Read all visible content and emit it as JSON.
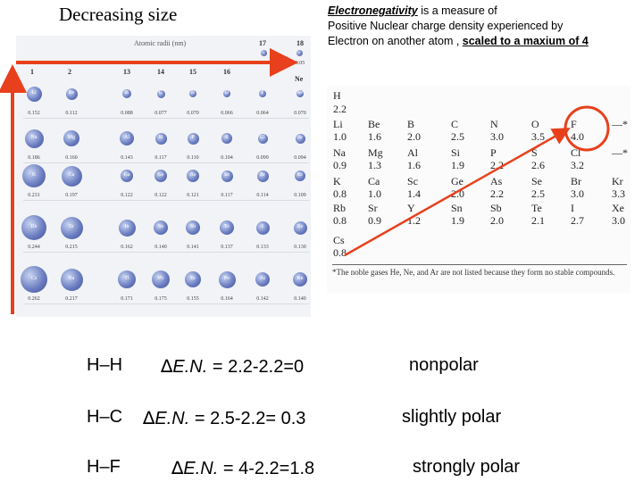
{
  "title": "Decreasing size",
  "definition": {
    "term": "Electronegativity",
    "line1_rest": " is a measure of",
    "line2": "Positive Nuclear charge density experienced by",
    "line3_prefix": "Electron on another atom , ",
    "line3_scale": "scaled to a maxium of 4"
  },
  "radii_chart": {
    "header": "Atomic radii (nm)",
    "groups": [
      "1",
      "2",
      "13",
      "14",
      "15",
      "16",
      "17",
      "18"
    ],
    "top_right": [
      {
        "sym": "H",
        "rad": "0.037"
      },
      {
        "sym": "He",
        "rad": "0.05"
      }
    ],
    "ne_label": "Ne",
    "rows": [
      [
        {
          "sym": "Li",
          "rad": "0.152"
        },
        {
          "sym": "Be",
          "rad": "0.112"
        },
        {
          "sym": "B",
          "rad": "0.088"
        },
        {
          "sym": "C",
          "rad": "0.077"
        },
        {
          "sym": "N",
          "rad": "0.070"
        },
        {
          "sym": "O",
          "rad": "0.066"
        },
        {
          "sym": "F",
          "rad": "0.064"
        },
        {
          "sym": "Ne",
          "rad": "0.070"
        }
      ],
      [
        {
          "sym": "Na",
          "rad": "0.186"
        },
        {
          "sym": "Mg",
          "rad": "0.160"
        },
        {
          "sym": "Al",
          "rad": "0.143"
        },
        {
          "sym": "Si",
          "rad": "0.117"
        },
        {
          "sym": "P",
          "rad": "0.110"
        },
        {
          "sym": "S",
          "rad": "0.104"
        },
        {
          "sym": "Cl",
          "rad": "0.099"
        },
        {
          "sym": "Ar",
          "rad": "0.094"
        }
      ],
      [
        {
          "sym": "K",
          "rad": "0.231"
        },
        {
          "sym": "Ca",
          "rad": "0.197"
        },
        {
          "sym": "Ga",
          "rad": "0.122"
        },
        {
          "sym": "Ge",
          "rad": "0.122"
        },
        {
          "sym": "As",
          "rad": "0.121"
        },
        {
          "sym": "Se",
          "rad": "0.117"
        },
        {
          "sym": "Br",
          "rad": "0.114"
        },
        {
          "sym": "Kr",
          "rad": "0.109"
        }
      ],
      [
        {
          "sym": "Rb",
          "rad": "0.244"
        },
        {
          "sym": "Sr",
          "rad": "0.215"
        },
        {
          "sym": "In",
          "rad": "0.162"
        },
        {
          "sym": "Sn",
          "rad": "0.140"
        },
        {
          "sym": "Sb",
          "rad": "0.141"
        },
        {
          "sym": "Te",
          "rad": "0.137"
        },
        {
          "sym": "I",
          "rad": "0.133"
        },
        {
          "sym": "Xe",
          "rad": "0.130"
        }
      ],
      [
        {
          "sym": "Cs",
          "rad": "0.262"
        },
        {
          "sym": "Ba",
          "rad": "0.217"
        },
        {
          "sym": "Tl",
          "rad": "0.171"
        },
        {
          "sym": "Pb",
          "rad": "0.175"
        },
        {
          "sym": "Bi",
          "rad": "0.155"
        },
        {
          "sym": "Po",
          "rad": "0.164"
        },
        {
          "sym": "At",
          "rad": "0.142"
        },
        {
          "sym": "Rn",
          "rad": "0.140"
        }
      ]
    ]
  },
  "en_table": {
    "h": {
      "sym": "H",
      "val": "2.2"
    },
    "rows": [
      [
        {
          "sym": "Li",
          "val": "1.0"
        },
        {
          "sym": "Be",
          "val": "1.6"
        },
        {
          "sym": "B",
          "val": "2.0"
        },
        {
          "sym": "C",
          "val": "2.5"
        },
        {
          "sym": "N",
          "val": "3.0"
        },
        {
          "sym": "O",
          "val": "3.5"
        },
        {
          "sym": "F",
          "val": "4.0"
        },
        {
          "sym": "—*",
          "val": ""
        }
      ],
      [
        {
          "sym": "Na",
          "val": "0.9"
        },
        {
          "sym": "Mg",
          "val": "1.3"
        },
        {
          "sym": "Al",
          "val": "1.6"
        },
        {
          "sym": "Si",
          "val": "1.9"
        },
        {
          "sym": "P",
          "val": "2.2"
        },
        {
          "sym": "S",
          "val": "2.6"
        },
        {
          "sym": "Cl",
          "val": "3.2"
        },
        {
          "sym": "—*",
          "val": ""
        }
      ],
      [
        {
          "sym": "K",
          "val": "0.8"
        },
        {
          "sym": "Ca",
          "val": "1.0"
        },
        {
          "sym": "Sc",
          "val": "1.4"
        },
        {
          "sym": "Ge",
          "val": "2.0"
        },
        {
          "sym": "As",
          "val": "2.2"
        },
        {
          "sym": "Se",
          "val": "2.5"
        },
        {
          "sym": "Br",
          "val": "3.0"
        },
        {
          "sym": "Kr",
          "val": "3.3"
        }
      ],
      [
        {
          "sym": "Rb",
          "val": "0.8"
        },
        {
          "sym": "Sr",
          "val": "0.9"
        },
        {
          "sym": "Y",
          "val": "1.2"
        },
        {
          "sym": "Sn",
          "val": "1.9"
        },
        {
          "sym": "Sb",
          "val": "2.0"
        },
        {
          "sym": "Te",
          "val": "2.1"
        },
        {
          "sym": "I",
          "val": "2.7"
        },
        {
          "sym": "Xe",
          "val": "3.0"
        }
      ],
      [
        {
          "sym": "Cs",
          "val": "0.8"
        },
        {
          "sym": "",
          "val": ""
        },
        {
          "sym": "",
          "val": ""
        },
        {
          "sym": "",
          "val": ""
        },
        {
          "sym": "",
          "val": ""
        },
        {
          "sym": "",
          "val": ""
        },
        {
          "sym": "",
          "val": ""
        },
        {
          "sym": "",
          "val": ""
        }
      ]
    ],
    "note": "*The noble gases He, Ne, and Ar are not listed because they form no stable compounds."
  },
  "bonds": [
    {
      "bond": "H–H",
      "delta": "∆",
      "en": "E.N.",
      "calc": " = 2.2-2.2=0",
      "type": "nonpolar"
    },
    {
      "bond": "H–C",
      "delta": "∆",
      "en": "E.N.",
      "calc": " = 2.5-2.2= 0.3",
      "type": "slightly polar"
    },
    {
      "bond": "H–F",
      "delta": "∆",
      "en": "E.N.",
      "calc": " = 4-2.2=1.8",
      "type": "strongly polar"
    }
  ],
  "colors": {
    "arrow": "#e8401c",
    "highlight_circle": "#e8401c",
    "ball": "#6d7fc2"
  }
}
